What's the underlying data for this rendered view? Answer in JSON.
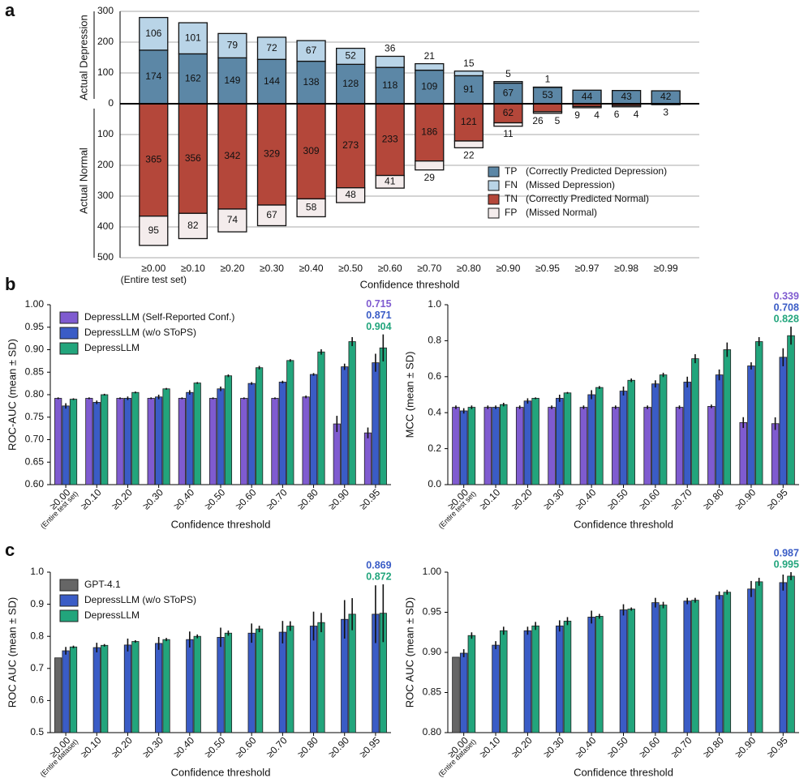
{
  "panel_labels": [
    "a",
    "b",
    "c"
  ],
  "chart_data": [
    {
      "type": "diverging_stacked_bar",
      "xlabel": "Confidence threshold",
      "upper_label": "Actual Depression",
      "lower_label": "Actual Normal",
      "categories": [
        "≥0.00",
        "≥0.10",
        "≥0.20",
        "≥0.30",
        "≥0.40",
        "≥0.50",
        "≥0.60",
        "≥0.70",
        "≥0.80",
        "≥0.90",
        "≥0.95",
        "≥0.97",
        "≥0.98",
        "≥0.99"
      ],
      "first_category_note": "(Entire test set)",
      "ylim": [
        -500,
        300
      ],
      "yticks": [
        300,
        200,
        100,
        0,
        {
          "value": -100,
          "label": "100"
        },
        {
          "value": -200,
          "label": "200"
        },
        {
          "value": -300,
          "label": "300"
        },
        {
          "value": -400,
          "label": "400"
        },
        {
          "value": -500,
          "label": "500"
        }
      ],
      "grid": true,
      "legend": "lower right",
      "series": [
        {
          "name": "TP",
          "description": "(Correctly Predicted Depression)",
          "side": "upper",
          "color": "#5c87a6",
          "values": [
            174,
            162,
            149,
            144,
            138,
            128,
            118,
            109,
            91,
            67,
            53,
            44,
            43,
            42
          ]
        },
        {
          "name": "FN",
          "description": "(Missed Depression)",
          "side": "upper",
          "color": "#b9d4e7",
          "values": [
            106,
            101,
            79,
            72,
            67,
            52,
            36,
            21,
            15,
            5,
            1,
            null,
            null,
            null
          ]
        },
        {
          "name": "TN",
          "description": "(Correctly Predicted Normal)",
          "side": "lower",
          "color": "#b4473a",
          "values": [
            365,
            356,
            342,
            329,
            309,
            273,
            233,
            186,
            121,
            62,
            26,
            9,
            6,
            3
          ]
        },
        {
          "name": "FP",
          "description": "(Missed Normal)",
          "side": "lower",
          "color": "#f4ecec",
          "values": [
            95,
            82,
            74,
            67,
            58,
            48,
            41,
            29,
            22,
            11,
            5,
            4,
            4,
            null
          ]
        }
      ]
    },
    {
      "type": "bar",
      "xlabel": "Confidence threshold",
      "ylabel": "ROC-AUC (mean ± SD)",
      "categories": [
        "≥0.00",
        "≥0.10",
        "≥0.20",
        "≥0.30",
        "≥0.40",
        "≥0.50",
        "≥0.60",
        "≥0.70",
        "≥0.80",
        "≥0.90",
        "≥0.95"
      ],
      "first_category_note": "(Entire test set)",
      "ylim": [
        0.6,
        1.0
      ],
      "yticks": [
        {
          "value": 0.6,
          "label": "0.60"
        },
        0.65,
        {
          "value": 0.7,
          "label": "0.70"
        },
        0.75,
        {
          "value": 0.8,
          "label": "0.80"
        },
        0.85,
        {
          "value": 0.9,
          "label": "0.90"
        },
        0.95,
        {
          "value": 1.0,
          "label": "1.00"
        }
      ],
      "grid": false,
      "legend": "upper left",
      "series": [
        {
          "name": "DepressLLM (Self-Reported Conf.)",
          "color": "#7f5bd0",
          "values": [
            0.792,
            0.792,
            0.792,
            0.792,
            0.792,
            0.792,
            0.792,
            0.792,
            0.795,
            0.735,
            0.715
          ],
          "errors": [
            0.002,
            0.002,
            0.002,
            0.002,
            0.002,
            0.002,
            0.002,
            0.002,
            0.003,
            0.018,
            0.012
          ]
        },
        {
          "name": "DepressLLM (w/o SToPS)",
          "color": "#3a5cc6",
          "values": [
            0.775,
            0.783,
            0.792,
            0.795,
            0.805,
            0.813,
            0.825,
            0.828,
            0.845,
            0.862,
            0.871
          ],
          "errors": [
            0.006,
            0.004,
            0.004,
            0.005,
            0.005,
            0.005,
            0.003,
            0.003,
            0.003,
            0.007,
            0.02
          ]
        },
        {
          "name": "DepressLLM",
          "color": "#22a57c",
          "values": [
            0.79,
            0.8,
            0.805,
            0.813,
            0.826,
            0.842,
            0.86,
            0.876,
            0.895,
            0.918,
            0.904
          ],
          "errors": [
            0.002,
            0.002,
            0.002,
            0.002,
            0.002,
            0.003,
            0.004,
            0.003,
            0.006,
            0.01,
            0.03
          ]
        }
      ]
    },
    {
      "type": "bar",
      "xlabel": "Confidence threshold",
      "ylabel": "MCC (mean ± SD)",
      "categories": [
        "≥0.00",
        "≥0.10",
        "≥0.20",
        "≥0.30",
        "≥0.40",
        "≥0.50",
        "≥0.60",
        "≥0.70",
        "≥0.80",
        "≥0.90",
        "≥0.95"
      ],
      "first_category_note": "(Entire test set)",
      "ylim": [
        0,
        1
      ],
      "yticks": [
        {
          "value": 0,
          "label": "0.0"
        },
        0.2,
        0.4,
        0.6,
        0.8,
        {
          "value": 1,
          "label": "1.0"
        }
      ],
      "grid": false,
      "series": [
        {
          "name": "DepressLLM (Self-Reported Conf.)",
          "color": "#7f5bd0",
          "values": [
            0.43,
            0.43,
            0.43,
            0.43,
            0.43,
            0.43,
            0.43,
            0.43,
            0.435,
            0.345,
            0.339
          ],
          "errors": [
            0.01,
            0.01,
            0.01,
            0.01,
            0.01,
            0.01,
            0.01,
            0.01,
            0.01,
            0.03,
            0.035
          ]
        },
        {
          "name": "DepressLLM (w/o SToPS)",
          "color": "#3a5cc6",
          "values": [
            0.41,
            0.43,
            0.465,
            0.48,
            0.5,
            0.52,
            0.56,
            0.57,
            0.61,
            0.66,
            0.708
          ],
          "errors": [
            0.015,
            0.01,
            0.015,
            0.02,
            0.025,
            0.025,
            0.02,
            0.03,
            0.03,
            0.02,
            0.05
          ]
        },
        {
          "name": "DepressLLM",
          "color": "#22a57c",
          "values": [
            0.43,
            0.445,
            0.48,
            0.51,
            0.54,
            0.58,
            0.61,
            0.7,
            0.75,
            0.795,
            0.828
          ],
          "errors": [
            0.01,
            0.01,
            0.005,
            0.005,
            0.008,
            0.01,
            0.012,
            0.025,
            0.04,
            0.025,
            0.05
          ]
        }
      ]
    },
    {
      "type": "bar",
      "xlabel": "Confidence threshold",
      "ylabel": "ROC AUC (mean ± SD)",
      "categories": [
        "≥0.00",
        "≥0.10",
        "≥0.20",
        "≥0.30",
        "≥0.40",
        "≥0.50",
        "≥0.60",
        "≥0.70",
        "≥0.80",
        "≥0.90",
        "≥0.95"
      ],
      "first_category_note": "(Entire dataset)",
      "ylim": [
        0.5,
        1.0
      ],
      "yticks": [
        0.5,
        0.6,
        0.7,
        0.8,
        0.9,
        {
          "value": 1.0,
          "label": "1.0"
        }
      ],
      "grid": false,
      "legend": "upper left",
      "series": [
        {
          "name": "GPT-4.1",
          "color": "#666666",
          "values": [
            0.733,
            null,
            null,
            null,
            null,
            null,
            null,
            null,
            null,
            null,
            null
          ],
          "errors": [
            0,
            null,
            null,
            null,
            null,
            null,
            null,
            null,
            null,
            null,
            null
          ]
        },
        {
          "name": "DepressLLM (w/o SToPS)",
          "color": "#3a5cc6",
          "values": [
            0.755,
            0.765,
            0.773,
            0.778,
            0.79,
            0.797,
            0.81,
            0.813,
            0.832,
            0.853,
            0.869
          ],
          "errors": [
            0.012,
            0.015,
            0.02,
            0.02,
            0.025,
            0.03,
            0.03,
            0.035,
            0.045,
            0.06,
            0.09
          ]
        },
        {
          "name": "DepressLLM",
          "color": "#22a57c",
          "values": [
            0.767,
            0.772,
            0.784,
            0.79,
            0.8,
            0.81,
            0.823,
            0.832,
            0.843,
            0.869,
            0.872
          ],
          "errors": [
            0.004,
            0.004,
            0.004,
            0.005,
            0.006,
            0.008,
            0.01,
            0.015,
            0.03,
            0.05,
            0.09
          ]
        }
      ]
    },
    {
      "type": "bar",
      "xlabel": "Confidence threshold",
      "ylabel": "ROC AUC (mean ± SD)",
      "categories": [
        "≥0.00",
        "≥0.10",
        "≥0.20",
        "≥0.30",
        "≥0.40",
        "≥0.50",
        "≥0.60",
        "≥0.70",
        "≥0.80",
        "≥0.90",
        "≥0.95"
      ],
      "first_category_note": "(Entire dataset)",
      "ylim": [
        0.8,
        1.0
      ],
      "yticks": [
        {
          "value": 0.8,
          "label": "0.80"
        },
        0.85,
        {
          "value": 0.9,
          "label": "0.90"
        },
        0.95,
        {
          "value": 1.0,
          "label": "1.00"
        }
      ],
      "grid": false,
      "series": [
        {
          "name": "GPT-4.1",
          "color": "#666666",
          "values": [
            0.894,
            null,
            null,
            null,
            null,
            null,
            null,
            null,
            null,
            null,
            null
          ],
          "errors": [
            0,
            null,
            null,
            null,
            null,
            null,
            null,
            null,
            null,
            null,
            null
          ]
        },
        {
          "name": "DepressLLM (w/o SToPS)",
          "color": "#3a5cc6",
          "values": [
            0.899,
            0.909,
            0.927,
            0.933,
            0.944,
            0.953,
            0.962,
            0.964,
            0.971,
            0.979,
            0.987
          ],
          "errors": [
            0.005,
            0.005,
            0.005,
            0.007,
            0.008,
            0.007,
            0.006,
            0.004,
            0.005,
            0.01,
            0.01
          ]
        },
        {
          "name": "DepressLLM",
          "color": "#22a57c",
          "values": [
            0.921,
            0.927,
            0.933,
            0.939,
            0.945,
            0.954,
            0.959,
            0.965,
            0.975,
            0.988,
            0.995
          ],
          "errors": [
            0.004,
            0.005,
            0.005,
            0.005,
            0.003,
            0.002,
            0.004,
            0.003,
            0.003,
            0.005,
            0.005
          ]
        }
      ]
    }
  ]
}
